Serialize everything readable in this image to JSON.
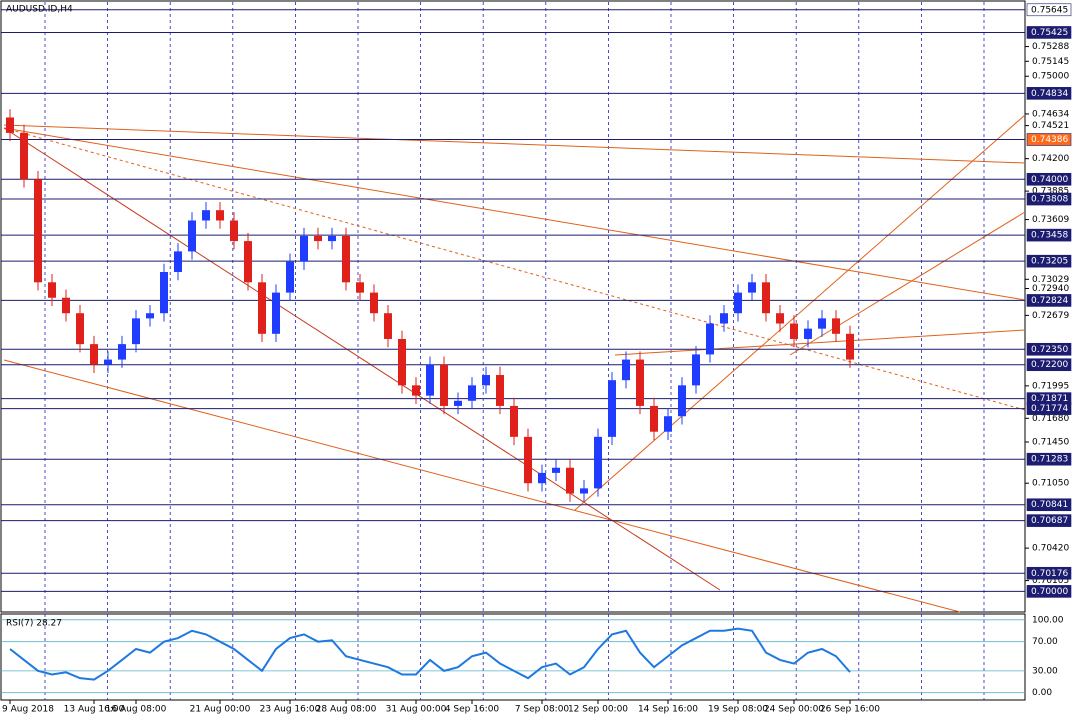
{
  "chart_data": [
    {
      "type": "candlestick",
      "title": "AUDUSD.ID,H4",
      "categories": [
        "9 Aug 2018",
        null,
        null,
        null,
        null,
        null,
        "13 Aug 16:00",
        null,
        null,
        "16 Aug 08:00",
        null,
        null,
        null,
        null,
        null,
        "21 Aug 00:00",
        null,
        null,
        null,
        null,
        "23 Aug 16:00",
        null,
        null,
        null,
        "28 Aug 08:00",
        null,
        null,
        null,
        null,
        "31 Aug 00:00",
        null,
        null,
        null,
        "4 Sep 16:00",
        null,
        null,
        null,
        null,
        "7 Sep 08:00",
        null,
        null,
        null,
        "12 Sep 00:00",
        null,
        null,
        null,
        null,
        "14 Sep 16:00",
        null,
        null,
        null,
        null,
        "19 Sep 08:00",
        null,
        null,
        null,
        "24 Sep 00:00",
        null,
        null,
        null,
        "26 Sep 16:00"
      ],
      "open": [
        0.746,
        0.7445,
        0.74,
        0.73,
        0.7285,
        0.727,
        0.724,
        0.722,
        0.7225,
        0.724,
        0.7265,
        0.727,
        0.731,
        0.733,
        0.736,
        0.737,
        0.736,
        0.734,
        0.73,
        0.725,
        0.729,
        0.732,
        0.7345,
        0.734,
        0.7345,
        0.73,
        0.729,
        0.727,
        0.7245,
        0.72,
        0.719,
        0.722,
        0.718,
        0.7185,
        0.72,
        0.721,
        0.718,
        0.715,
        0.7105,
        0.7115,
        0.712,
        0.7095,
        0.71,
        0.715,
        0.7205,
        0.7225,
        0.718,
        0.7155,
        0.717,
        0.72,
        0.723,
        0.726,
        0.727,
        0.729,
        0.73,
        0.727,
        0.726,
        0.7245,
        0.7255,
        0.7265,
        0.725
      ],
      "high": [
        0.7468,
        0.7453,
        0.7408,
        0.7308,
        0.7293,
        0.7278,
        0.7248,
        0.7233,
        0.7248,
        0.7273,
        0.7278,
        0.7318,
        0.7338,
        0.7368,
        0.7378,
        0.7378,
        0.7368,
        0.7348,
        0.7308,
        0.7298,
        0.7328,
        0.7353,
        0.7353,
        0.7353,
        0.7353,
        0.7308,
        0.7298,
        0.7278,
        0.7253,
        0.7208,
        0.7228,
        0.7228,
        0.7193,
        0.7208,
        0.7218,
        0.7218,
        0.7188,
        0.7158,
        0.7123,
        0.7128,
        0.7128,
        0.7108,
        0.7158,
        0.7213,
        0.7233,
        0.7233,
        0.7188,
        0.7178,
        0.7208,
        0.7238,
        0.7268,
        0.7278,
        0.7298,
        0.7308,
        0.7308,
        0.7278,
        0.7268,
        0.7263,
        0.7273,
        0.7273,
        0.7258
      ],
      "low": [
        0.7437,
        0.7392,
        0.7292,
        0.7277,
        0.7262,
        0.7232,
        0.7212,
        0.7212,
        0.7217,
        0.7232,
        0.7257,
        0.7262,
        0.7302,
        0.7322,
        0.7352,
        0.7352,
        0.7332,
        0.7292,
        0.7242,
        0.7242,
        0.7282,
        0.7312,
        0.7332,
        0.7332,
        0.7292,
        0.7282,
        0.7262,
        0.7237,
        0.7192,
        0.7182,
        0.7182,
        0.7172,
        0.7172,
        0.7177,
        0.7192,
        0.7172,
        0.7142,
        0.7097,
        0.7097,
        0.7107,
        0.7087,
        0.7087,
        0.7092,
        0.7142,
        0.7197,
        0.7172,
        0.7147,
        0.7147,
        0.7162,
        0.7192,
        0.7222,
        0.7252,
        0.7262,
        0.7282,
        0.7262,
        0.7252,
        0.7237,
        0.7237,
        0.7247,
        0.7242,
        0.7217
      ],
      "close": [
        0.7445,
        0.74,
        0.73,
        0.7285,
        0.727,
        0.724,
        0.722,
        0.7225,
        0.724,
        0.7265,
        0.727,
        0.731,
        0.733,
        0.736,
        0.737,
        0.736,
        0.734,
        0.73,
        0.725,
        0.729,
        0.732,
        0.7345,
        0.734,
        0.7345,
        0.73,
        0.729,
        0.727,
        0.7245,
        0.72,
        0.719,
        0.722,
        0.718,
        0.7185,
        0.72,
        0.721,
        0.718,
        0.715,
        0.7105,
        0.7115,
        0.712,
        0.7095,
        0.71,
        0.715,
        0.7205,
        0.7225,
        0.718,
        0.7155,
        0.717,
        0.72,
        0.723,
        0.726,
        0.727,
        0.729,
        0.73,
        0.727,
        0.726,
        0.7245,
        0.7255,
        0.7265,
        0.725,
        0.7225
      ],
      "up_color": "#1f3cff",
      "down_color": "#e0201a",
      "ylim": [
        0.698,
        0.7574
      ],
      "yticks": [
        0.75288,
        0.75145,
        {
          "value": 0.75,
          "label": "0.75000"
        },
        0.74634,
        0.74521,
        {
          "value": 0.742,
          "label": "0.74200"
        },
        0.73885,
        0.73609,
        0.73029,
        {
          "value": 0.7294,
          "label": "0.72940"
        },
        0.72679,
        0.71995,
        {
          "value": 0.7168,
          "label": "0.71680"
        },
        {
          "value": 0.7145,
          "label": "0.71450"
        },
        {
          "value": 0.7105,
          "label": "0.71050"
        },
        {
          "value": 0.7042,
          "label": "0.70420"
        },
        0.70105
      ],
      "levels": [
        {
          "value": 0.75645,
          "label": "0.75645",
          "color": "#ffffff"
        },
        {
          "value": 0.75425,
          "label": "0.75425",
          "color": "#1c1c70"
        },
        {
          "value": 0.74834,
          "label": "0.74834",
          "color": "#1c1c70"
        },
        {
          "value": 0.74386,
          "label": "0.74386",
          "color": "#ff6a1a"
        },
        {
          "value": 0.74,
          "label": "0.74000",
          "color": "#1c1c70"
        },
        {
          "value": 0.73808,
          "label": "0.73808",
          "color": "#1c1c70"
        },
        {
          "value": 0.73458,
          "label": "0.73458",
          "color": "#1c1c70"
        },
        {
          "value": 0.73205,
          "label": "0.73205",
          "color": "#1c1c70"
        },
        {
          "value": 0.72824,
          "label": "0.72824",
          "color": "#1c1c70"
        },
        {
          "value": 0.7235,
          "label": "0.72350",
          "color": "#1c1c70"
        },
        {
          "value": 0.722,
          "label": "0.72200",
          "color": "#1c1c70"
        },
        {
          "value": 0.71871,
          "label": "0.71871",
          "color": "#1c1c70"
        },
        {
          "value": 0.71774,
          "label": "0.71774",
          "color": "#1c1c70"
        },
        {
          "value": 0.71283,
          "label": "0.71283",
          "color": "#1c1c70"
        },
        {
          "value": 0.70841,
          "label": "0.70841",
          "color": "#1c1c70"
        },
        {
          "value": 0.70687,
          "label": "0.70687",
          "color": "#1c1c70"
        },
        {
          "value": 0.70176,
          "label": "0.70176",
          "color": "#1c1c70"
        },
        {
          "value": 0.7,
          "label": "0.70000",
          "color": "#1c1c70"
        }
      ]
    },
    {
      "type": "line",
      "title": "RSI(7) 28.27",
      "color": "#1e78e0",
      "values": [
        60,
        45,
        30,
        25,
        28,
        20,
        18,
        30,
        45,
        60,
        55,
        70,
        75,
        85,
        80,
        70,
        60,
        45,
        30,
        60,
        75,
        80,
        70,
        72,
        50,
        45,
        40,
        35,
        25,
        25,
        45,
        30,
        35,
        50,
        55,
        40,
        30,
        20,
        35,
        40,
        25,
        35,
        60,
        80,
        85,
        55,
        35,
        50,
        65,
        75,
        85,
        85,
        88,
        85,
        55,
        45,
        40,
        55,
        60,
        50,
        28.27
      ],
      "ylim": [
        -10,
        108
      ],
      "yticks": [
        {
          "value": 100,
          "label": "100.00"
        },
        {
          "value": 70,
          "label": "70.00"
        },
        {
          "value": 30,
          "label": "30.00"
        },
        {
          "value": 0,
          "label": "0.00"
        }
      ]
    }
  ]
}
